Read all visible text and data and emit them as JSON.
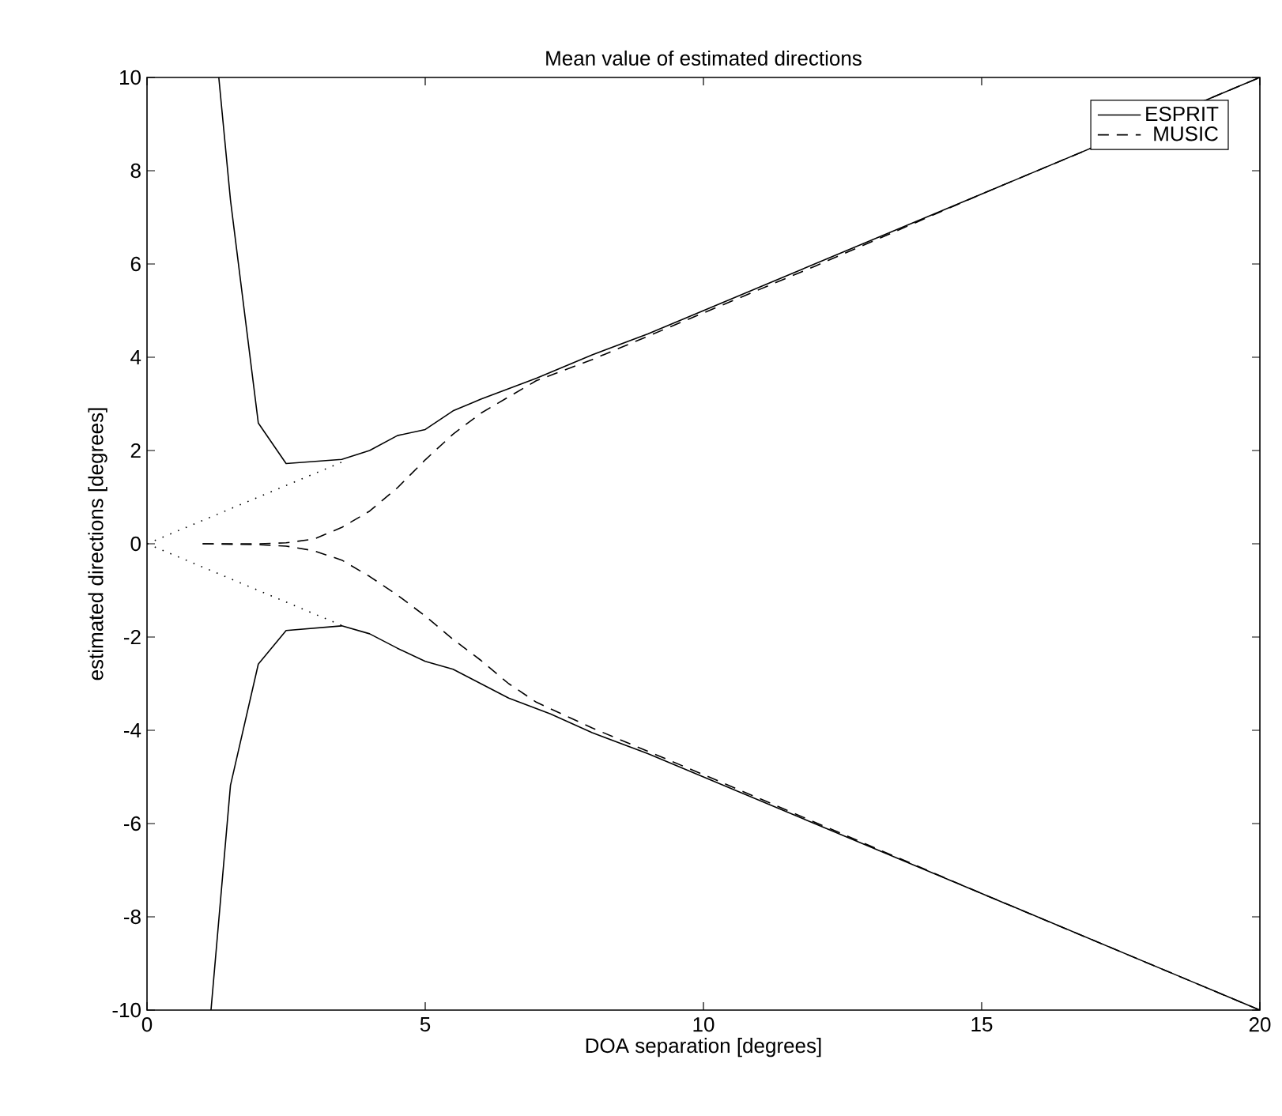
{
  "chart_data": {
    "type": "line",
    "title": "Mean value of estimated directions",
    "xlabel": "DOA separation [degrees]",
    "ylabel": "estimated directions [degrees]",
    "xlim": [
      0,
      20
    ],
    "ylim": [
      -10,
      10
    ],
    "xticks": [
      0,
      5,
      10,
      15,
      20
    ],
    "yticks": [
      -10,
      -8,
      -6,
      -4,
      -2,
      0,
      2,
      4,
      6,
      8,
      10
    ],
    "grid": false,
    "legend": "top right",
    "marker": "none",
    "series": [
      {
        "name": "ESPRIT",
        "color": "#000000",
        "line_style": "solid",
        "x": [
          1.29,
          1.5,
          2.0,
          2.5,
          3.5,
          4.0,
          4.5,
          5.0,
          5.5,
          6.0,
          7.0,
          8.0,
          9.0,
          10.0,
          15.0,
          20.0
        ],
        "values": [
          10,
          7.37,
          2.59,
          1.72,
          1.81,
          2.0,
          2.32,
          2.45,
          2.85,
          3.1,
          3.55,
          4.05,
          4.5,
          5.0,
          7.5,
          10.0
        ]
      },
      {
        "color": "#000000",
        "line_style": "solid",
        "x": [
          1.15,
          1.5,
          2.0,
          2.5,
          3.5,
          4.0,
          4.5,
          5.0,
          5.5,
          6.5,
          7.25,
          8.0,
          9.0,
          10.0,
          15.0,
          20.0
        ],
        "values": [
          -10,
          -5.18,
          -2.58,
          -1.86,
          -1.76,
          -1.93,
          -2.24,
          -2.52,
          -2.69,
          -3.31,
          -3.65,
          -4.05,
          -4.5,
          -5.0,
          -7.5,
          -10.0
        ]
      },
      {
        "name": "MUSIC",
        "color": "#000000",
        "line_style": "dashed",
        "x": [
          1,
          2,
          2.5,
          3,
          3.5,
          4,
          4.5,
          5,
          5.5,
          6,
          6.5,
          7,
          8,
          9,
          10,
          12,
          15,
          20
        ],
        "values": [
          0,
          0,
          0.02,
          0.1,
          0.35,
          0.7,
          1.2,
          1.8,
          2.35,
          2.8,
          3.15,
          3.5,
          3.95,
          4.45,
          4.95,
          5.95,
          7.5,
          10
        ]
      },
      {
        "color": "#000000",
        "line_style": "dashed",
        "x": [
          1,
          2,
          2.5,
          3,
          3.5,
          4,
          4.5,
          5,
          5.5,
          6,
          6.5,
          7,
          8,
          9,
          10,
          15,
          20
        ],
        "values": [
          0,
          -0.02,
          -0.05,
          -0.15,
          -0.35,
          -0.7,
          -1.1,
          -1.55,
          -2.05,
          -2.5,
          -3.0,
          -3.4,
          -3.95,
          -4.45,
          -4.95,
          -7.5,
          -10
        ]
      },
      {
        "color": "#000000",
        "line_style": "dotted",
        "x": [
          0,
          3.5
        ],
        "values": [
          0,
          1.75
        ]
      },
      {
        "color": "#000000",
        "line_style": "dotted",
        "x": [
          0,
          3.5
        ],
        "values": [
          0,
          -1.75
        ]
      }
    ]
  }
}
